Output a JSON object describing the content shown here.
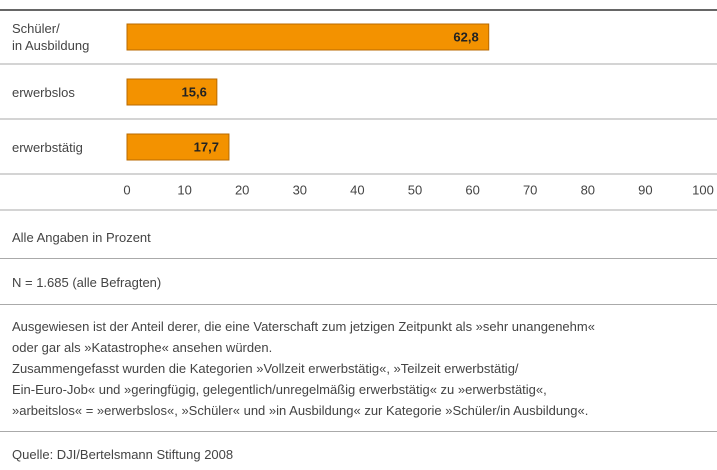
{
  "chart_data": {
    "type": "bar",
    "orientation": "horizontal",
    "categories": [
      "Schüler/\nin Ausbildung",
      "erwerbslos",
      "erwerbstätig"
    ],
    "values": [
      62.8,
      15.6,
      17.7
    ],
    "value_labels": [
      "62,8",
      "15,6",
      "17,7"
    ],
    "color": "#f39200",
    "xlim": [
      0,
      100
    ],
    "xticks": [
      0,
      10,
      20,
      30,
      40,
      50,
      60,
      70,
      80,
      90,
      100
    ],
    "grid": false
  },
  "notes": {
    "unit": "Alle Angaben in Prozent",
    "sample": "N = 1.685 (alle Befragten)",
    "text": [
      "Ausgewiesen ist der Anteil derer, die eine Vaterschaft zum jetzigen Zeitpunkt als »sehr unangenehm«",
      "oder gar als »Katastrophe« ansehen würden.",
      "Zusammengefasst wurden die Kategorien »Vollzeit erwerbstätig«, »Teilzeit erwerbstätig/",
      "Ein-Euro-Job« und »geringfügig, gelegentlich/unregelmäßig erwerbstätig« zu »erwerbstätig«,",
      "»arbeitslos« = »erwerbslos«, »Schüler« und »in Ausbildung« zur Kategorie »Schüler/in Ausbildung«."
    ],
    "source": "Quelle: DJI/Bertelsmann Stiftung 2008"
  }
}
